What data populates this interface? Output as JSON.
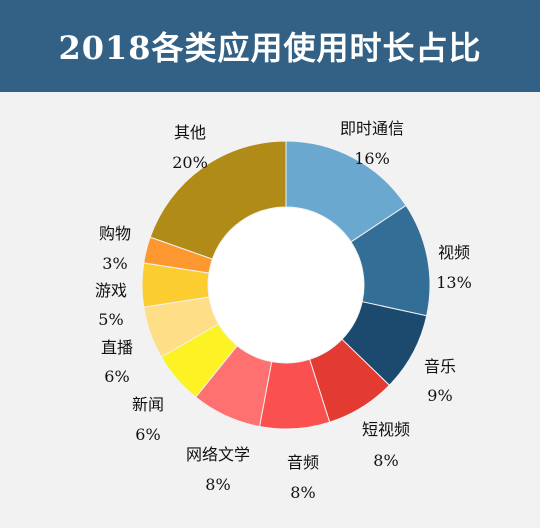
{
  "title": "2018各类应用使用时长占比",
  "chart_data": {
    "type": "pie",
    "title": "2018各类应用使用时长占比",
    "donut": true,
    "slices": [
      {
        "name": "即时通信",
        "value": 16,
        "label": "16%",
        "color": "#6aa8d0"
      },
      {
        "name": "视频",
        "value": 13,
        "label": "13%",
        "color": "#336e96"
      },
      {
        "name": "音乐",
        "value": 9,
        "label": "9%",
        "color": "#1c4a6e"
      },
      {
        "name": "短视频",
        "value": 8,
        "label": "8%",
        "color": "#e33a32"
      },
      {
        "name": "音频",
        "value": 8,
        "label": "8%",
        "color": "#fb5050"
      },
      {
        "name": "网络文学",
        "value": 8,
        "label": "8%",
        "color": "#ff7070"
      },
      {
        "name": "新闻",
        "value": 6,
        "label": "6%",
        "color": "#fcf224"
      },
      {
        "name": "直播",
        "value": 6,
        "label": "6%",
        "color": "#ffde88"
      },
      {
        "name": "游戏",
        "value": 5,
        "label": "5%",
        "color": "#fccd30"
      },
      {
        "name": "购物",
        "value": 3,
        "label": "3%",
        "color": "#fd9830"
      },
      {
        "name": "其他",
        "value": 20,
        "label": "20%",
        "color": "#b18b17"
      }
    ]
  }
}
